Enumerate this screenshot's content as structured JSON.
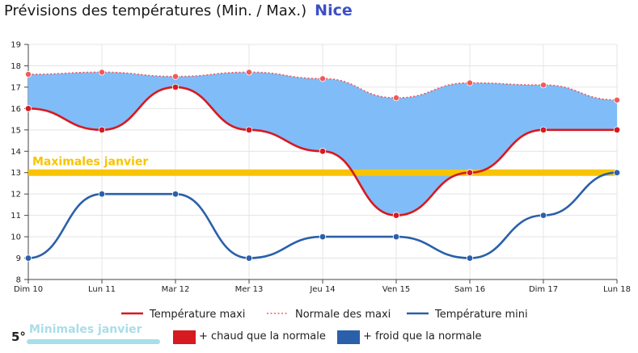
{
  "header": {
    "title": "Prévisions des températures (Min. / Max.)",
    "city": "Nice"
  },
  "chart_data": {
    "type": "line",
    "categories": [
      "Dim 10",
      "Lun 11",
      "Mar 12",
      "Mer 13",
      "Jeu 14",
      "Ven 15",
      "Sam 16",
      "Dim 17",
      "Lun 18"
    ],
    "ylim": [
      8,
      19
    ],
    "yticks": [
      8,
      9,
      10,
      11,
      12,
      13,
      14,
      15,
      16,
      17,
      18,
      19
    ],
    "grid": true,
    "legend_position": "bottom",
    "series": [
      {
        "name": "Température maxi",
        "color": "#d71920",
        "style": "solid",
        "values": [
          16,
          15,
          17,
          15,
          14,
          11,
          13,
          15,
          15
        ]
      },
      {
        "name": "Normale des maxi",
        "color": "#ef5a5a",
        "style": "dotted",
        "values": [
          17.6,
          17.7,
          17.5,
          17.7,
          17.4,
          16.5,
          17.2,
          17.1,
          16.4
        ]
      },
      {
        "name": "Température mini",
        "color": "#2a60aa",
        "style": "solid",
        "values": [
          9,
          12,
          12,
          9,
          10,
          10,
          9,
          11,
          13
        ]
      }
    ],
    "fill_between": {
      "upper": "Normale des maxi",
      "lower": "Température maxi",
      "color": "#7fbcf8"
    },
    "reference_line": {
      "label": "Maximales janvier",
      "value": 13,
      "color": "#f8c400"
    }
  },
  "bottom_legend": {
    "min_value": "5°",
    "min_label": "Minimales janvier",
    "min_color": "#a9dde9",
    "warm_label": "+ chaud que la normale",
    "warm_color": "#d71920",
    "cold_label": "+ froid que la normale",
    "cold_color": "#2a60aa"
  }
}
